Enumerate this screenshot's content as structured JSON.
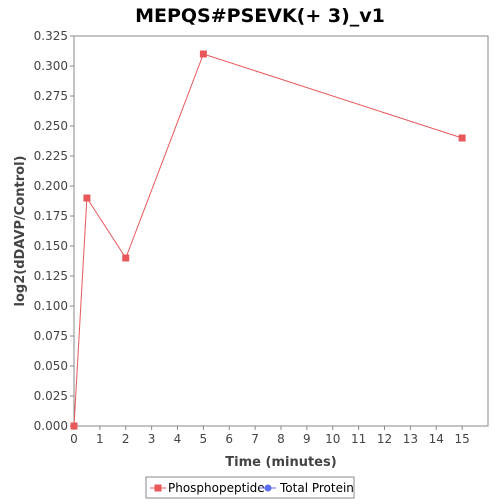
{
  "chart_data": {
    "type": "line",
    "title": "MEPQS#PSEVK(+ 3)_v1",
    "xlabel": "Time (minutes)",
    "ylabel": "log2(dDAVP/Control)",
    "xlim": [
      0,
      16
    ],
    "ylim": [
      0,
      0.325
    ],
    "x_ticks": [
      "0",
      "1",
      "2",
      "3",
      "4",
      "5",
      "6",
      "7",
      "8",
      "9",
      "10",
      "11",
      "12",
      "13",
      "14",
      "15"
    ],
    "y_ticks": [
      "0.000",
      "0.025",
      "0.050",
      "0.075",
      "0.100",
      "0.125",
      "0.150",
      "0.175",
      "0.200",
      "0.225",
      "0.250",
      "0.275",
      "0.300",
      "0.325"
    ],
    "grid": false,
    "legend_position": "bottom",
    "series": [
      {
        "name": "Phosphopeptide",
        "color": "#e8585a",
        "marker": "square",
        "x": [
          0,
          0.5,
          2,
          5,
          15
        ],
        "y": [
          0.0,
          0.19,
          0.14,
          0.31,
          0.24
        ]
      },
      {
        "name": "Total Protein",
        "color": "#5b6ef0",
        "marker": "circle",
        "x": [],
        "y": []
      }
    ]
  }
}
